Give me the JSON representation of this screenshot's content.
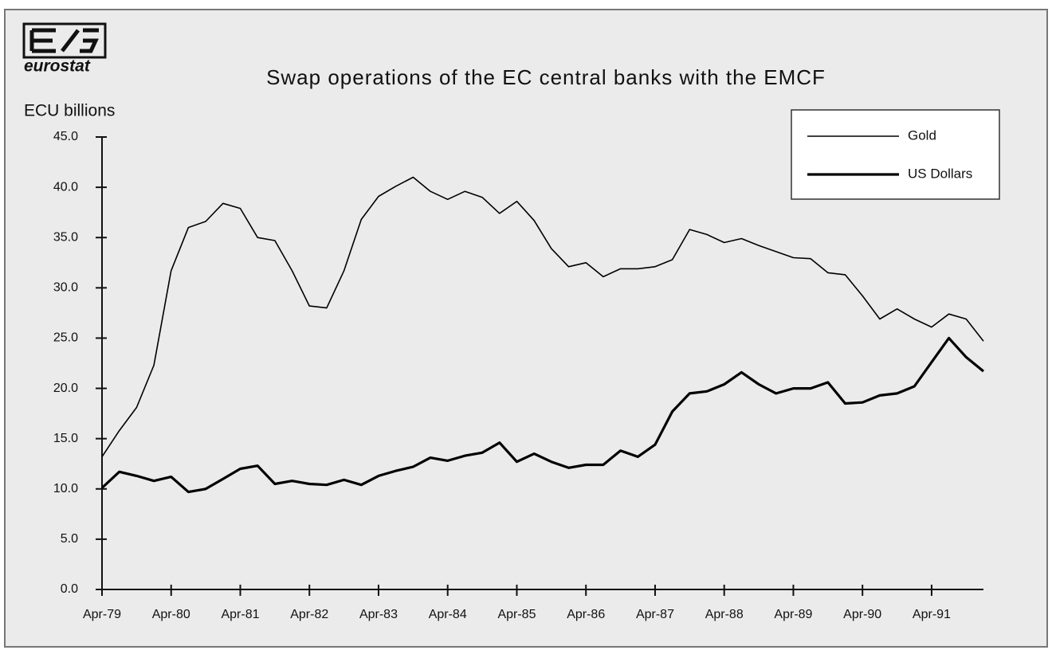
{
  "logo": "eurostat",
  "chart_data": {
    "type": "line",
    "title": "Swap operations of the EC central banks with the EMCF",
    "y_label": "ECU billions",
    "categories": [
      "Apr-79",
      null,
      null,
      null,
      "Apr-80",
      null,
      null,
      null,
      "Apr-81",
      null,
      null,
      null,
      "Apr-82",
      null,
      null,
      null,
      "Apr-83",
      null,
      null,
      null,
      "Apr-84",
      null,
      null,
      null,
      "Apr-85",
      null,
      null,
      null,
      "Apr-86",
      null,
      null,
      null,
      "Apr-87",
      null,
      null,
      null,
      "Apr-88",
      null,
      null,
      null,
      "Apr-89",
      null,
      null,
      null,
      "Apr-90",
      null,
      null,
      null,
      "Apr-91",
      null,
      null,
      null
    ],
    "series": [
      {
        "name": "Gold",
        "color": "#000000",
        "width": 1.6,
        "values": [
          13.2,
          15.8,
          18.1,
          22.3,
          31.7,
          36.0,
          36.6,
          38.4,
          37.9,
          35.0,
          34.7,
          31.7,
          28.2,
          28.0,
          31.7,
          36.8,
          39.1,
          40.1,
          41.0,
          39.6,
          38.8,
          39.6,
          39.0,
          37.4,
          38.6,
          36.7,
          33.9,
          32.1,
          32.5,
          31.1,
          31.9,
          31.9,
          32.1,
          32.8,
          35.8,
          35.3,
          34.5,
          34.9,
          34.2,
          33.6,
          33.0,
          32.9,
          31.5,
          31.3,
          29.2,
          26.9,
          27.9,
          26.9,
          26.1,
          27.4,
          26.9,
          24.7
        ]
      },
      {
        "name": "US Dollars",
        "color": "#000000",
        "width": 3.2,
        "values": [
          10.1,
          11.7,
          11.3,
          10.8,
          11.2,
          9.7,
          10.0,
          11.0,
          12.0,
          12.3,
          10.5,
          10.8,
          10.5,
          10.4,
          10.9,
          10.4,
          11.3,
          11.8,
          12.2,
          13.1,
          12.8,
          13.3,
          13.6,
          14.6,
          12.7,
          13.5,
          12.7,
          12.1,
          12.4,
          12.4,
          13.8,
          13.2,
          14.4,
          17.7,
          19.5,
          19.7,
          20.4,
          21.6,
          20.4,
          19.5,
          20.0,
          20.0,
          20.6,
          18.5,
          18.6,
          19.3,
          19.5,
          20.2,
          22.6,
          25.0,
          23.1,
          21.7
        ]
      }
    ],
    "ylim": [
      0,
      45
    ],
    "yticks": [
      {
        "value": 0,
        "label": "0.0"
      },
      {
        "value": 5,
        "label": "5.0"
      },
      {
        "value": 10,
        "label": "10.0"
      },
      {
        "value": 15,
        "label": "15.0"
      },
      {
        "value": 20,
        "label": "20.0"
      },
      {
        "value": 25,
        "label": "25.0"
      },
      {
        "value": 30,
        "label": "30.0"
      },
      {
        "value": 35,
        "label": "35.0"
      },
      {
        "value": 40,
        "label": "40.0"
      },
      {
        "value": 45,
        "label": "45.0"
      }
    ],
    "legend": "upper right",
    "grid": false
  }
}
